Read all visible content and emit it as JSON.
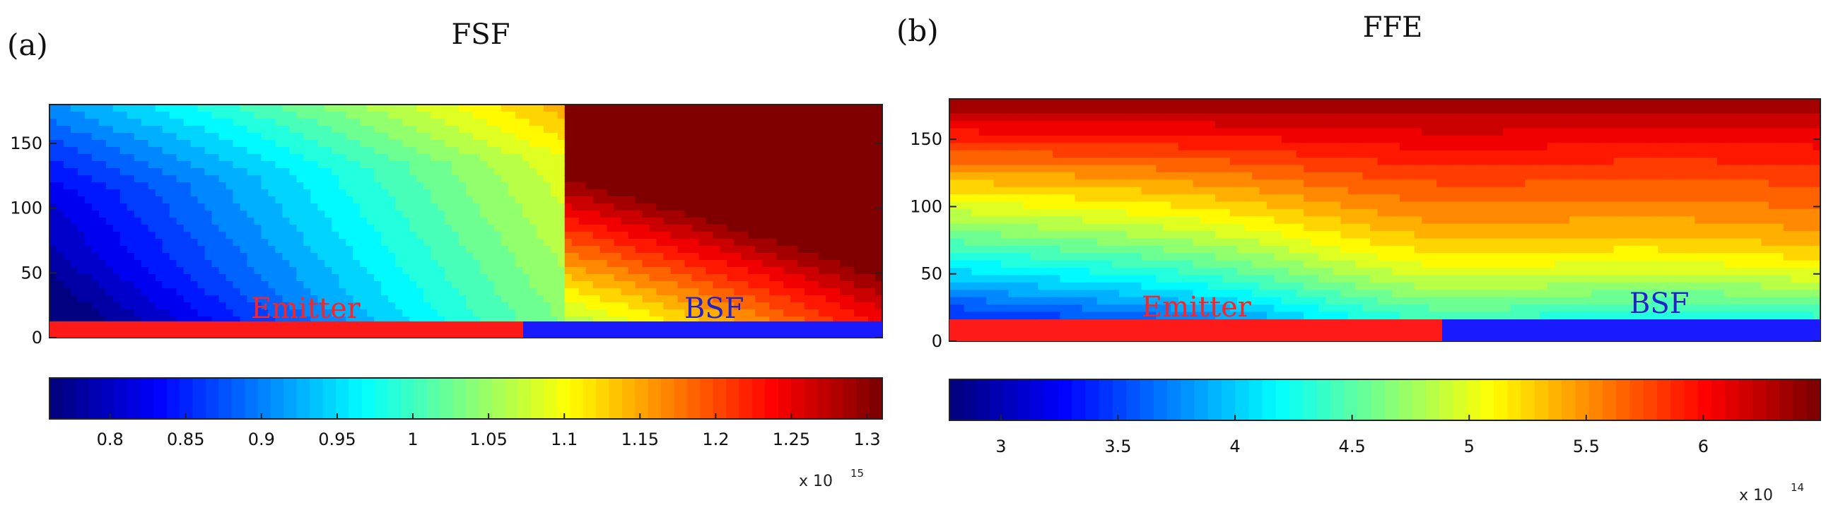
{
  "chart_data": [
    {
      "type": "heatmap",
      "panel_label": "(a)",
      "title": "FSF",
      "y_ticks": [
        "0",
        "50",
        "100",
        "150"
      ],
      "ylim": [
        0,
        180
      ],
      "colorbar": {
        "min": 0.76,
        "max": 1.31,
        "ticks": [
          "0.8",
          "0.85",
          "0.9",
          "0.95",
          "1",
          "1.05",
          "1.1",
          "1.15",
          "1.2",
          "1.25",
          "1.3"
        ],
        "multiplier": "x 10",
        "exponent": "15"
      },
      "regions": [
        {
          "name": "Emitter",
          "color": "#ff1a1a"
        },
        {
          "name": "BSF",
          "color": "#1a1aff"
        }
      ],
      "boundary_fraction": 0.57,
      "pattern": "a",
      "levels": 28
    },
    {
      "type": "heatmap",
      "panel_label": "(b)",
      "title": "FFE",
      "y_ticks": [
        "0",
        "50",
        "100",
        "150"
      ],
      "ylim": [
        0,
        180
      ],
      "colorbar": {
        "min": 2.78,
        "max": 6.5,
        "ticks": [
          "3",
          "3.5",
          "4",
          "4.5",
          "5",
          "5.5",
          "6"
        ],
        "multiplier": "x 10",
        "exponent": "14"
      },
      "regions": [
        {
          "name": "Emitter",
          "color": "#ff1a1a"
        },
        {
          "name": "BSF",
          "color": "#1a1aff"
        }
      ],
      "boundary_fraction": 0.56,
      "pattern": "b",
      "levels": 28
    }
  ]
}
